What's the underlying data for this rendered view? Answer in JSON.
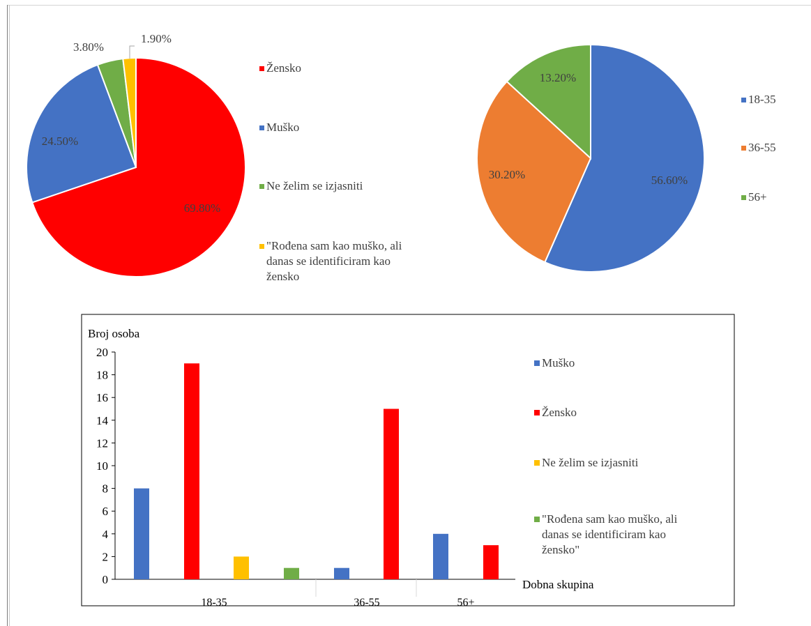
{
  "chart_data": [
    {
      "type": "pie",
      "slices": [
        {
          "label": "Žensko",
          "value": 69.8,
          "display": "69.80%",
          "color": "#ff0000"
        },
        {
          "label": "Muško",
          "value": 24.5,
          "display": "24.50%",
          "color": "#4472c4"
        },
        {
          "label": "Ne želim se izjasniti",
          "value": 3.8,
          "display": "3.80%",
          "color": "#70ad47"
        },
        {
          "label": "\"Rođena sam kao muško, ali danas se identificiram kao žensko",
          "value": 1.9,
          "display": "1.90%",
          "color": "#ffc000"
        }
      ],
      "legend_lines": [
        [
          "Žensko"
        ],
        [
          "Muško"
        ],
        [
          "Ne želim se izjasniti"
        ],
        [
          "\"Rođena sam kao muško, ali",
          "danas se identificiram kao",
          "žensko"
        ]
      ],
      "legend_position": "right"
    },
    {
      "type": "pie",
      "slices": [
        {
          "label": "18-35",
          "value": 56.6,
          "display": "56.60%",
          "color": "#4472c4"
        },
        {
          "label": "36-55",
          "value": 30.2,
          "display": "30.20%",
          "color": "#ed7d31"
        },
        {
          "label": "56+",
          "value": 13.2,
          "display": "13.20%",
          "color": "#70ad47"
        }
      ],
      "legend_lines": [
        [
          "18-35"
        ],
        [
          "36-55"
        ],
        [
          "56+"
        ]
      ],
      "legend_position": "right"
    },
    {
      "type": "bar",
      "ylabel": "Broj osoba",
      "xlabel": "Dobna skupina",
      "ylim": [
        0,
        20
      ],
      "yticks": [
        "0",
        "2",
        "4",
        "6",
        "8",
        "10",
        "12",
        "14",
        "16",
        "18",
        "20"
      ],
      "categories": [
        "18-35",
        "36-55",
        "56+"
      ],
      "series": [
        {
          "name": "Muško",
          "color": "#4472c4",
          "values": [
            8,
            1,
            4
          ]
        },
        {
          "name": "Žensko",
          "color": "#ff0000",
          "values": [
            19,
            15,
            3
          ]
        },
        {
          "name": "Ne želim se izjasniti",
          "color": "#ffc000",
          "values": [
            2,
            null,
            null
          ]
        },
        {
          "name": "\"Rođena sam kao muško, ali danas se identificiram kao žensko\"",
          "color": "#70ad47",
          "values": [
            1,
            null,
            null
          ]
        }
      ],
      "legend_lines": [
        [
          "Muško"
        ],
        [
          "Žensko"
        ],
        [
          "Ne želim se izjasniti"
        ],
        [
          "\"Rođena sam kao muško, ali",
          "danas se identificiram kao",
          "žensko\""
        ]
      ],
      "legend_position": "right"
    }
  ]
}
